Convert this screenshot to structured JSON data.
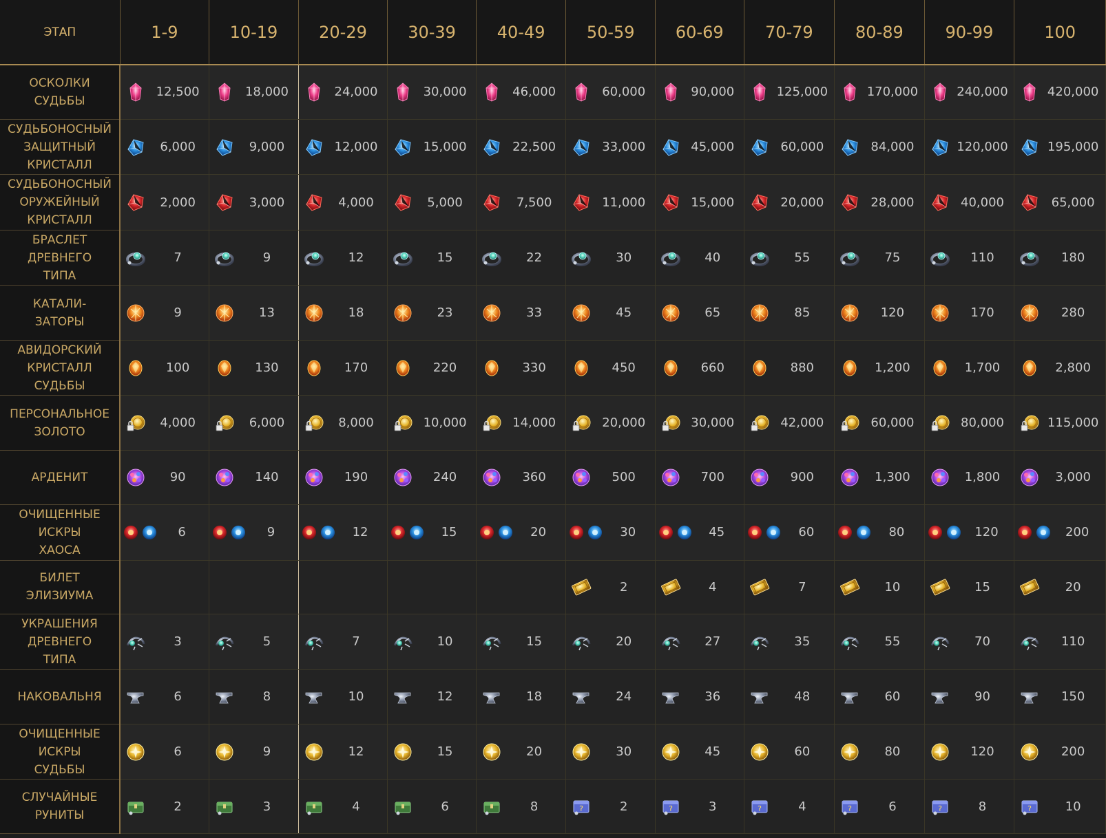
{
  "header": {
    "stage_label": "ЭТАП",
    "stages": [
      "1-9",
      "10-19",
      "20-29",
      "30-39",
      "40-49",
      "50-59",
      "60-69",
      "70-79",
      "80-89",
      "90-99",
      "100"
    ]
  },
  "rows": [
    {
      "label": "ОСКОЛКИ\nСУДЬБЫ",
      "icon": "destiny-shard-icon",
      "values": [
        "12,500",
        "18,000",
        "24,000",
        "30,000",
        "46,000",
        "60,000",
        "90,000",
        "125,000",
        "170,000",
        "240,000",
        "420,000"
      ]
    },
    {
      "label": "СУДЬБОНОСНЫЙ\nЗАЩИТНЫЙ\nКРИСТАЛЛ",
      "icon": "destiny-guardian-crystal-icon",
      "values": [
        "6,000",
        "9,000",
        "12,000",
        "15,000",
        "22,500",
        "33,000",
        "45,000",
        "60,000",
        "84,000",
        "120,000",
        "195,000"
      ]
    },
    {
      "label": "СУДЬБОНОСНЫЙ\nОРУЖЕЙНЫЙ\nКРИСТАЛЛ",
      "icon": "destiny-weapon-crystal-icon",
      "values": [
        "2,000",
        "3,000",
        "4,000",
        "5,000",
        "7,500",
        "11,000",
        "15,000",
        "20,000",
        "28,000",
        "40,000",
        "65,000"
      ]
    },
    {
      "label": "БРАСЛЕТ\nДРЕВНЕГО\nТИПА",
      "icon": "ancient-bracelet-icon",
      "values": [
        "7",
        "9",
        "12",
        "15",
        "22",
        "30",
        "40",
        "55",
        "75",
        "110",
        "180"
      ]
    },
    {
      "label": "КАТАЛИ-\nЗАТОРЫ",
      "icon": "catalyst-icon",
      "values": [
        "9",
        "13",
        "18",
        "23",
        "33",
        "45",
        "65",
        "85",
        "120",
        "170",
        "280"
      ]
    },
    {
      "label": "АВИДОРСКИЙ\nКРИСТАЛЛ\nСУДЬБЫ",
      "icon": "abidos-crystal-icon",
      "values": [
        "100",
        "130",
        "170",
        "220",
        "330",
        "450",
        "660",
        "880",
        "1,200",
        "1,700",
        "2,800"
      ]
    },
    {
      "label": "ПЕРСОНАЛЬНОЕ\nЗОЛОТО",
      "icon": "bound-gold-icon",
      "values": [
        "4,000",
        "6,000",
        "8,000",
        "10,000",
        "14,000",
        "20,000",
        "30,000",
        "42,000",
        "60,000",
        "80,000",
        "115,000"
      ]
    },
    {
      "label": "АРДЕНИТ",
      "icon": "ardenite-icon",
      "values": [
        "90",
        "140",
        "190",
        "240",
        "360",
        "500",
        "700",
        "900",
        "1,300",
        "1,800",
        "3,000"
      ]
    },
    {
      "label": "ОЧИЩЕННЫЕ\nИСКРЫ\nХАОСА",
      "icon": "chaos-sparks-icon",
      "values": [
        "6",
        "9",
        "12",
        "15",
        "20",
        "30",
        "45",
        "60",
        "80",
        "120",
        "200"
      ]
    },
    {
      "label": "БИЛЕТ\nЭЛИЗИУМА",
      "icon": "elysium-ticket-icon",
      "values": [
        "",
        "",
        "",
        "",
        "",
        "2",
        "4",
        "7",
        "10",
        "15",
        "20"
      ]
    },
    {
      "label": "УКРАШЕНИЯ\nДРЕВНЕГО\nТИПА",
      "icon": "ancient-accessory-icon",
      "values": [
        "3",
        "5",
        "7",
        "10",
        "15",
        "20",
        "27",
        "35",
        "55",
        "70",
        "110"
      ]
    },
    {
      "label": "НАКОВАЛЬНЯ",
      "icon": "anvil-icon",
      "values": [
        "6",
        "8",
        "10",
        "12",
        "18",
        "24",
        "36",
        "48",
        "60",
        "90",
        "150"
      ]
    },
    {
      "label": "ОЧИЩЕННЫЕ\nИСКРЫ\nСУДЬБЫ",
      "icon": "destiny-sparks-icon",
      "values": [
        "6",
        "9",
        "12",
        "15",
        "20",
        "30",
        "45",
        "60",
        "80",
        "120",
        "200"
      ]
    },
    {
      "label": "СЛУЧАЙНЫЕ\nРУНИТЫ",
      "icon": "random-runite-chest-icon",
      "values": [
        "2",
        "3",
        "4",
        "6",
        "8",
        "2",
        "3",
        "4",
        "6",
        "8",
        "10"
      ]
    }
  ]
}
